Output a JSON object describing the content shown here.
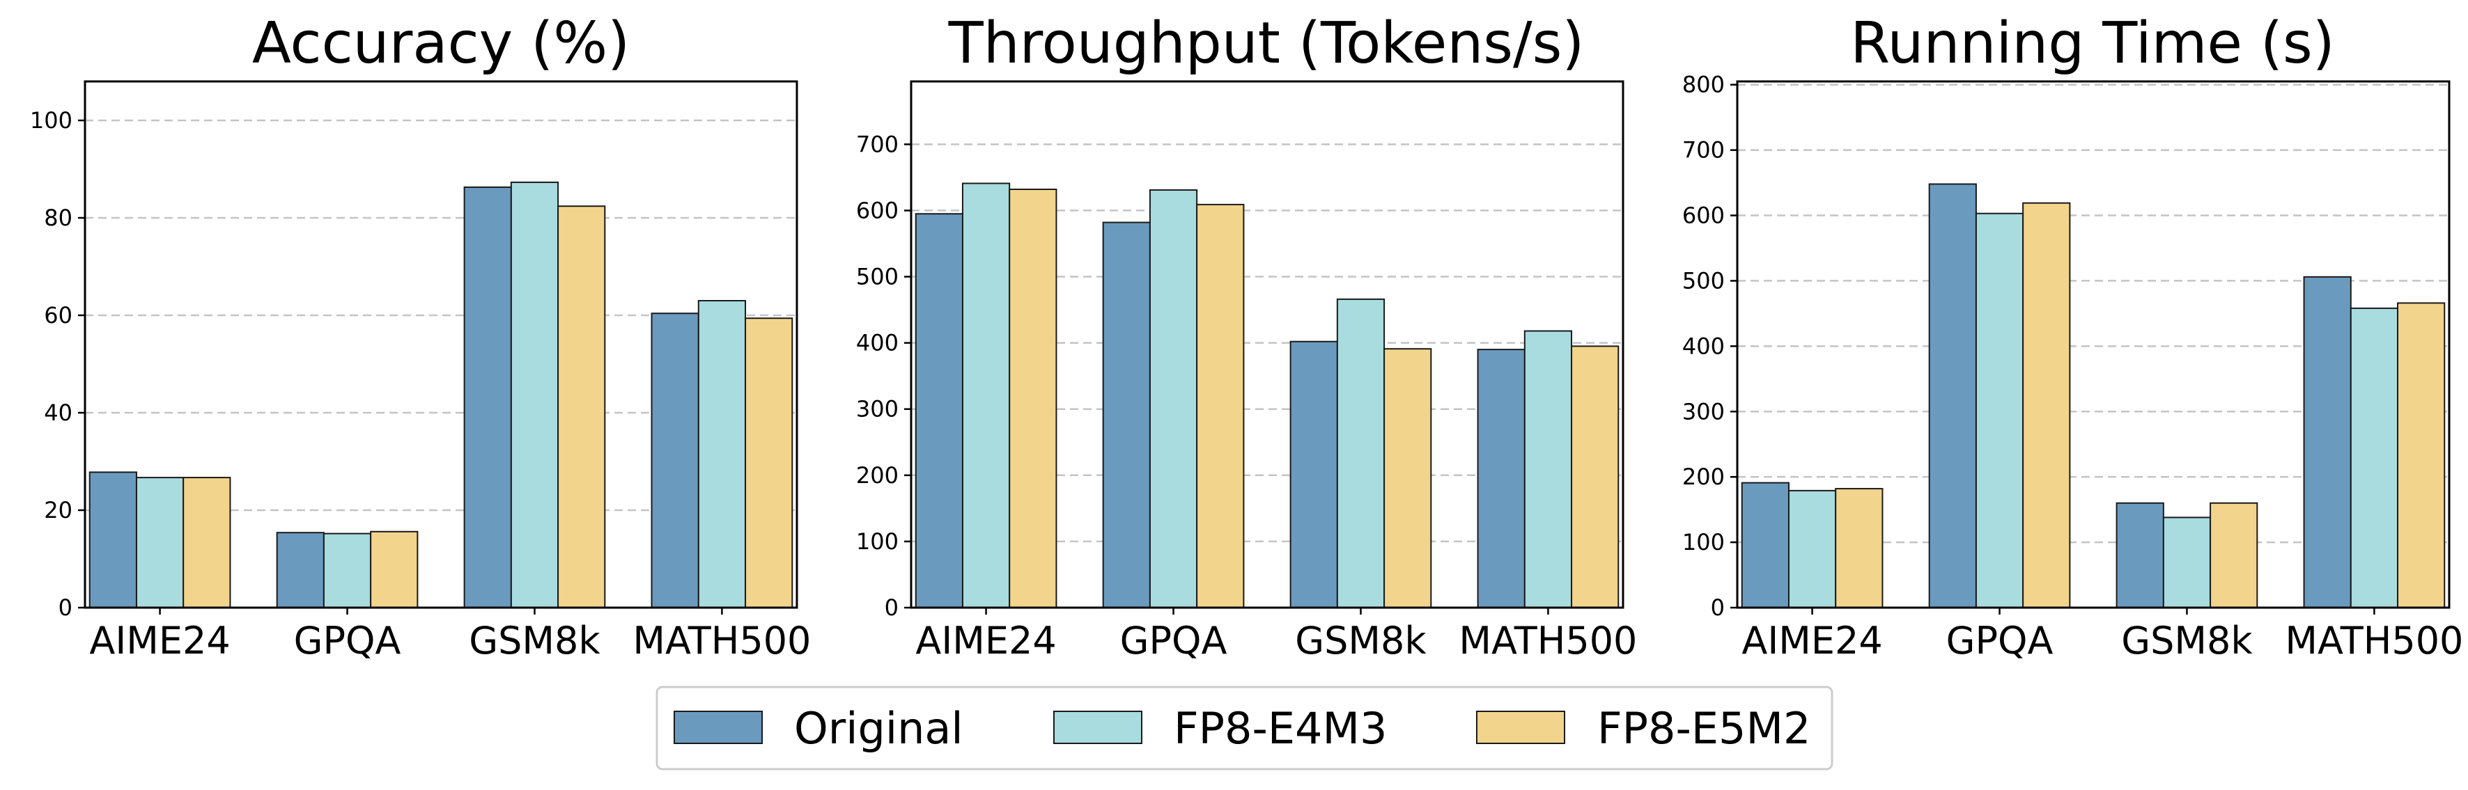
{
  "chart_data": [
    {
      "type": "bar",
      "title": "Accuracy (%)",
      "categories": [
        "AIME24",
        "GPQA",
        "GSM8k",
        "MATH500"
      ],
      "series": [
        {
          "name": "Original",
          "values": [
            27.8,
            15.4,
            86.3,
            60.4
          ]
        },
        {
          "name": "FP8-E4M3",
          "values": [
            26.7,
            15.2,
            87.3,
            63.0
          ]
        },
        {
          "name": "FP8-E5M2",
          "values": [
            26.7,
            15.6,
            82.4,
            59.4
          ]
        }
      ],
      "ylim": [
        0,
        108
      ],
      "yticks": [
        0,
        20,
        40,
        60,
        80,
        100
      ],
      "grid": "y dashed"
    },
    {
      "type": "bar",
      "title": "Throughput (Tokens/s)",
      "categories": [
        "AIME24",
        "GPQA",
        "GSM8k",
        "MATH500"
      ],
      "series": [
        {
          "name": "Original",
          "values": [
            595,
            582,
            402,
            390
          ]
        },
        {
          "name": "FP8-E4M3",
          "values": [
            641,
            631,
            466,
            418
          ]
        },
        {
          "name": "FP8-E5M2",
          "values": [
            632,
            609,
            391,
            395
          ]
        }
      ],
      "ylim": [
        0,
        795
      ],
      "yticks": [
        0,
        100,
        200,
        300,
        400,
        500,
        600,
        700
      ],
      "grid": "y dashed"
    },
    {
      "type": "bar",
      "title": "Running Time (s)",
      "categories": [
        "AIME24",
        "GPQA",
        "GSM8k",
        "MATH500"
      ],
      "series": [
        {
          "name": "Original",
          "values": [
            191,
            648,
            160,
            506
          ]
        },
        {
          "name": "FP8-E4M3",
          "values": [
            179,
            603,
            138,
            458
          ]
        },
        {
          "name": "FP8-E5M2",
          "values": [
            182,
            619,
            160,
            466
          ]
        }
      ],
      "ylim": [
        0,
        805
      ],
      "yticks": [
        0,
        100,
        200,
        300,
        400,
        500,
        600,
        700,
        800
      ],
      "grid": "y dashed"
    }
  ],
  "legend": {
    "position": "bottom-center",
    "items": [
      {
        "label": "Original",
        "color": "#6a9bbf"
      },
      {
        "label": "FP8-E4M3",
        "color": "#a8dcdf"
      },
      {
        "label": "FP8-E5M2",
        "color": "#f2d48c"
      }
    ]
  },
  "colors": {
    "series": [
      "#6a9bbf",
      "#a8dcdf",
      "#f2d48c"
    ],
    "grid": "#c4c4c4",
    "bar_edge": "#1a1a1a"
  }
}
